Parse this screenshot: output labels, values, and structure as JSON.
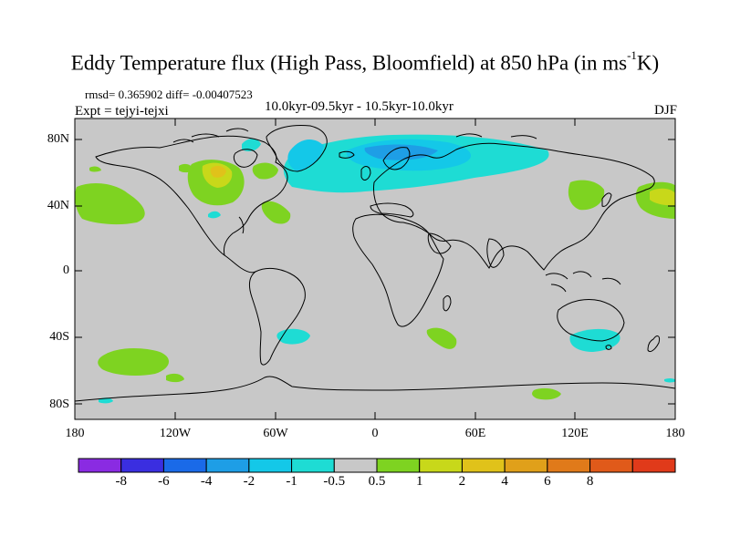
{
  "title": {
    "main": "Eddy Temperature flux (High Pass, Bloomfield) at 850 hPa (in ms",
    "sup": "-1",
    "tail": "K)"
  },
  "subtitle": {
    "rmsd": "rmsd= 0.365902 diff= -0.00407523",
    "expt": "Expt = tejyi-tejxi",
    "period": "10.0kyr-09.5kyr - 10.5kyr-10.0kyr",
    "season": "DJF"
  },
  "axes": {
    "lat_ticks": [
      "80N",
      "40N",
      "0",
      "40S",
      "80S"
    ],
    "lon_ticks": [
      "180",
      "120W",
      "60W",
      "0",
      "60E",
      "120E",
      "180"
    ]
  },
  "colorbar": {
    "colors": [
      "#8a2be2",
      "#3a2ee0",
      "#1a6ae8",
      "#1e9ee6",
      "#14c8e8",
      "#1edcd4",
      "#c8c8c8",
      "#7ed321",
      "#c8d81a",
      "#e0c21a",
      "#e0a01a",
      "#e07a1a",
      "#e05a1a",
      "#e03a1a"
    ],
    "labels": [
      "-8",
      "-6",
      "-4",
      "-2",
      "-1",
      "-0.5",
      "0.5",
      "1",
      "2",
      "4",
      "6",
      "8"
    ]
  },
  "map": {
    "background": "#c8c8c8",
    "land_outline": "#000000"
  }
}
